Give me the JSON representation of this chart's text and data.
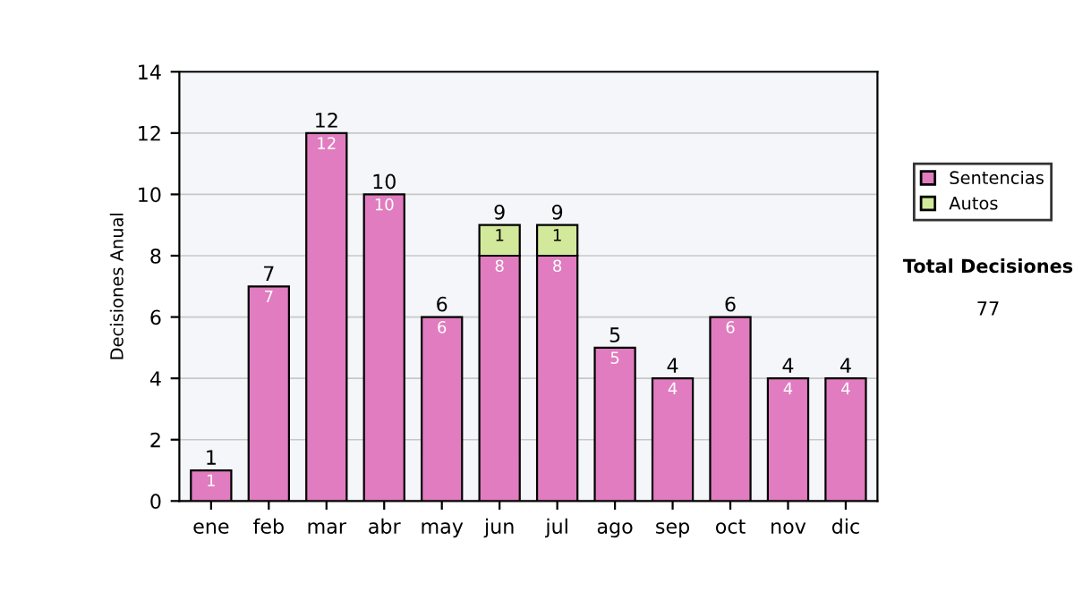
{
  "chart_data": {
    "type": "bar",
    "stacked": true,
    "ylabel": "Decisiones Anual",
    "categories": [
      "ene",
      "feb",
      "mar",
      "abr",
      "may",
      "jun",
      "jul",
      "ago",
      "sep",
      "oct",
      "nov",
      "dic"
    ],
    "series": [
      {
        "name": "Sentencias",
        "color": "#e07cbf",
        "values": [
          1,
          7,
          12,
          10,
          6,
          8,
          8,
          5,
          4,
          6,
          4,
          4
        ],
        "value_labels": [
          "1",
          "7",
          "12",
          "10",
          "6",
          "8",
          "8",
          "5",
          "4",
          "6",
          "4",
          "4"
        ]
      },
      {
        "name": "Autos",
        "color": "#d2e89a",
        "values": [
          null,
          null,
          null,
          null,
          null,
          1,
          1,
          null,
          null,
          null,
          null,
          null
        ],
        "value_labels": [
          null,
          null,
          null,
          null,
          null,
          "1",
          "1",
          null,
          null,
          null,
          null,
          null
        ]
      }
    ],
    "totals": [
      "1",
      "7",
      "12",
      "10",
      "6",
      "9",
      "9",
      "5",
      "4",
      "6",
      "4",
      "4"
    ],
    "ylim": [
      0,
      14
    ],
    "yticks": [
      0,
      2,
      4,
      6,
      8,
      10,
      12,
      14
    ],
    "grid": "y",
    "legend": "right",
    "annotations": [
      "Total Decisiones",
      "77"
    ]
  }
}
